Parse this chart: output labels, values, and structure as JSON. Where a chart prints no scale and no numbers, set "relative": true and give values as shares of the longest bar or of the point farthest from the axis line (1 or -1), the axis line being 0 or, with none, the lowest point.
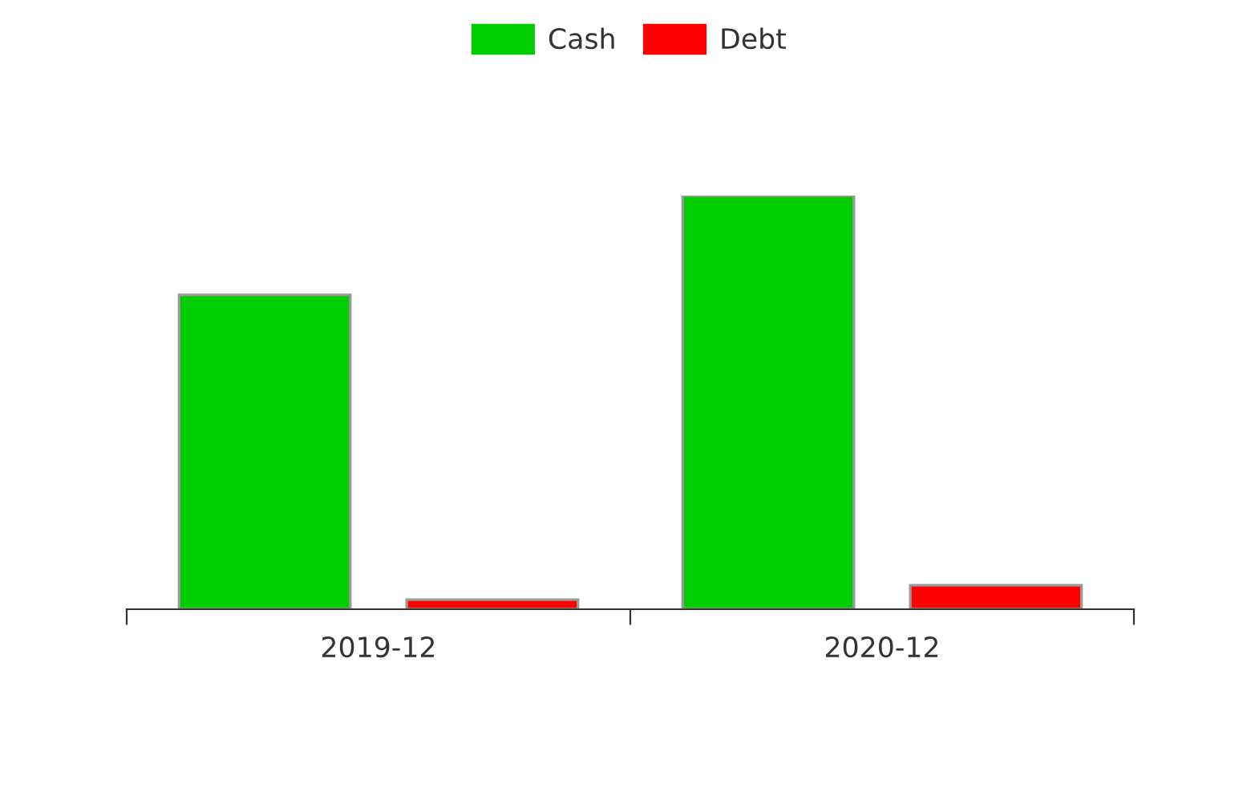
{
  "chart_data": {
    "type": "bar",
    "categories": [
      "2019-12",
      "2020-12"
    ],
    "relative": true,
    "legend": "top",
    "series": [
      {
        "name": "Cash",
        "color": "#00cc00",
        "values": [
          0.76,
          1
        ]
      },
      {
        "name": "Debt",
        "color": "#ff0000",
        "values": [
          0.023,
          0.058
        ]
      }
    ]
  }
}
